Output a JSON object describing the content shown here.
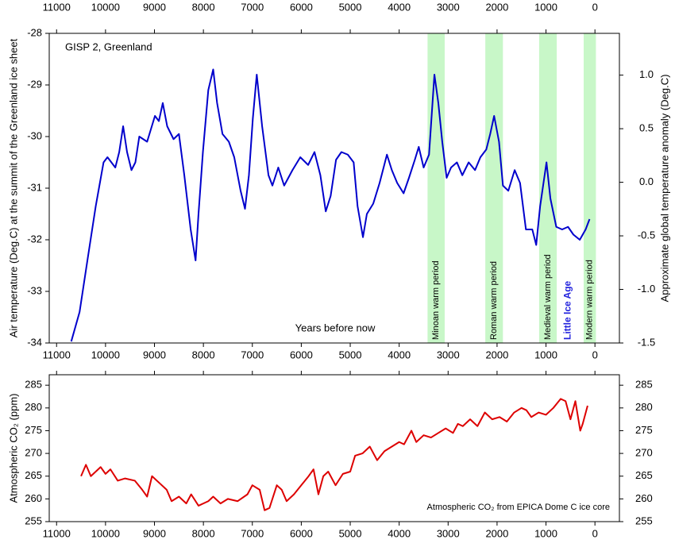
{
  "chart_data": [
    {
      "type": "line",
      "annotation": "GISP 2, Greenland",
      "xlabel": "Years before now",
      "ylabel": "Air temperature (Deg.C) at the summit of the Greenland ice sheet",
      "y2label": "Approximate global temperature anomaly (Deg.C)",
      "xlim": [
        11150,
        -500
      ],
      "xticks": [
        11000,
        10000,
        9000,
        8000,
        7000,
        6000,
        5000,
        4000,
        3000,
        2000,
        1000,
        0
      ],
      "ylim": [
        -34,
        -28
      ],
      "yticks": [
        -34,
        -33,
        -32,
        -31,
        -30,
        -29,
        -28
      ],
      "y2lim": [
        -1.5,
        1.39
      ],
      "y2ticks": [
        -1.5,
        {
          "value": -1.0,
          "label": "-1.0"
        },
        -0.5,
        {
          "value": 0.0,
          "label": "0.0"
        },
        0.5,
        {
          "value": 1.0,
          "label": "1.0"
        }
      ],
      "color": "#0000cc",
      "periods": [
        {
          "label": "Minoan warm period",
          "start": 3420,
          "end": 3070,
          "fill": "#c8f7c8",
          "color": "#000000"
        },
        {
          "label": "Roman warm period",
          "start": 2240,
          "end": 1880,
          "fill": "#c8f7c8",
          "color": "#000000"
        },
        {
          "label": "Medieval warm period",
          "start": 1140,
          "end": 780,
          "fill": "#c8f7c8",
          "color": "#000000"
        },
        {
          "label": "Little Ice Age",
          "start": 700,
          "end": 400,
          "fill": null,
          "color": "#2222dd"
        },
        {
          "label": "Modern warm period",
          "start": 230,
          "end": -20,
          "fill": "#c8f7c8",
          "color": "#000000"
        }
      ],
      "x": [
        10700,
        10530,
        10370,
        10200,
        10040,
        9960,
        9800,
        9720,
        9640,
        9560,
        9470,
        9390,
        9310,
        9150,
        8990,
        8910,
        8830,
        8740,
        8610,
        8500,
        8390,
        8260,
        8160,
        8100,
        8010,
        7900,
        7800,
        7720,
        7610,
        7480,
        7370,
        7240,
        7150,
        7070,
        6990,
        6910,
        6800,
        6670,
        6590,
        6470,
        6350,
        6180,
        6020,
        5860,
        5730,
        5610,
        5500,
        5400,
        5290,
        5180,
        5050,
        4930,
        4850,
        4740,
        4660,
        4530,
        4400,
        4250,
        4150,
        4040,
        3910,
        3800,
        3680,
        3600,
        3500,
        3390,
        3280,
        3200,
        3120,
        3030,
        2940,
        2820,
        2710,
        2580,
        2450,
        2340,
        2220,
        2140,
        2060,
        1960,
        1880,
        1770,
        1640,
        1530,
        1410,
        1280,
        1200,
        1120,
        990,
        910,
        790,
        670,
        550,
        440,
        310,
        190,
        110
      ],
      "values": [
        -33.97,
        -33.4,
        -32.4,
        -31.35,
        -30.5,
        -30.4,
        -30.6,
        -30.3,
        -29.8,
        -30.3,
        -30.65,
        -30.5,
        -30.0,
        -30.1,
        -29.6,
        -29.7,
        -29.35,
        -29.8,
        -30.05,
        -29.95,
        -30.75,
        -31.8,
        -32.4,
        -31.5,
        -30.3,
        -29.1,
        -28.7,
        -29.35,
        -29.95,
        -30.1,
        -30.4,
        -31.05,
        -31.4,
        -30.75,
        -29.65,
        -28.8,
        -29.8,
        -30.75,
        -30.95,
        -30.6,
        -30.95,
        -30.65,
        -30.4,
        -30.55,
        -30.3,
        -30.75,
        -31.45,
        -31.15,
        -30.45,
        -30.3,
        -30.35,
        -30.5,
        -31.35,
        -31.95,
        -31.5,
        -31.3,
        -30.9,
        -30.35,
        -30.65,
        -30.9,
        -31.1,
        -30.8,
        -30.45,
        -30.2,
        -30.6,
        -30.35,
        -28.8,
        -29.35,
        -30.1,
        -30.8,
        -30.6,
        -30.5,
        -30.75,
        -30.5,
        -30.65,
        -30.4,
        -30.25,
        -29.95,
        -29.6,
        -30.1,
        -30.95,
        -31.05,
        -30.65,
        -30.9,
        -31.8,
        -31.8,
        -32.1,
        -31.35,
        -30.5,
        -31.2,
        -31.75,
        -31.8,
        -31.75,
        -31.9,
        -32.0,
        -31.8,
        -31.6
      ]
    },
    {
      "type": "line",
      "annotation": "Atmospheric CO₂ from EPICA Dome C ice core",
      "ylabel": "Atmospheric CO₂ (ppm)",
      "xlim": [
        11150,
        -500
      ],
      "xticks": [
        11000,
        10000,
        9000,
        8000,
        7000,
        6000,
        5000,
        4000,
        3000,
        2000,
        1000,
        0
      ],
      "ylim": [
        255,
        287.3
      ],
      "yticks": [
        255,
        260,
        265,
        270,
        275,
        280,
        285
      ],
      "color": "#dd0000",
      "x": [
        10500,
        10400,
        10300,
        10100,
        10000,
        9900,
        9750,
        9600,
        9400,
        9250,
        9150,
        9050,
        8900,
        8750,
        8650,
        8500,
        8350,
        8250,
        8100,
        7900,
        7800,
        7650,
        7500,
        7300,
        7100,
        7000,
        6850,
        6750,
        6650,
        6500,
        6400,
        6300,
        6150,
        6000,
        5850,
        5750,
        5650,
        5550,
        5450,
        5300,
        5150,
        5000,
        4900,
        4750,
        4600,
        4450,
        4300,
        4150,
        4000,
        3900,
        3750,
        3650,
        3500,
        3350,
        3200,
        3050,
        2900,
        2800,
        2700,
        2550,
        2400,
        2250,
        2100,
        1950,
        1800,
        1650,
        1500,
        1400,
        1300,
        1150,
        1000,
        850,
        700,
        600,
        500,
        400,
        300,
        250,
        150
      ],
      "values": [
        265,
        267.5,
        265,
        267,
        265.5,
        266.5,
        264,
        264.5,
        264,
        262,
        260.5,
        265,
        263.5,
        262,
        259.5,
        260.5,
        259,
        261,
        258.5,
        259.5,
        260.5,
        259,
        260,
        259.5,
        261,
        263,
        262,
        257.5,
        258,
        263,
        262,
        259.5,
        261,
        263,
        265,
        266.5,
        261,
        265,
        266,
        263,
        265.5,
        266,
        269.5,
        270,
        271.5,
        268.5,
        270.5,
        271.5,
        272.5,
        272,
        275,
        272.5,
        274,
        273.5,
        274.5,
        275.5,
        274.5,
        276.5,
        276,
        277.5,
        276,
        279,
        277.5,
        278,
        277,
        279,
        280,
        279.5,
        278,
        279,
        278.5,
        280,
        282,
        281.5,
        277.5,
        281.5,
        275,
        276.5,
        280.5
      ]
    }
  ]
}
